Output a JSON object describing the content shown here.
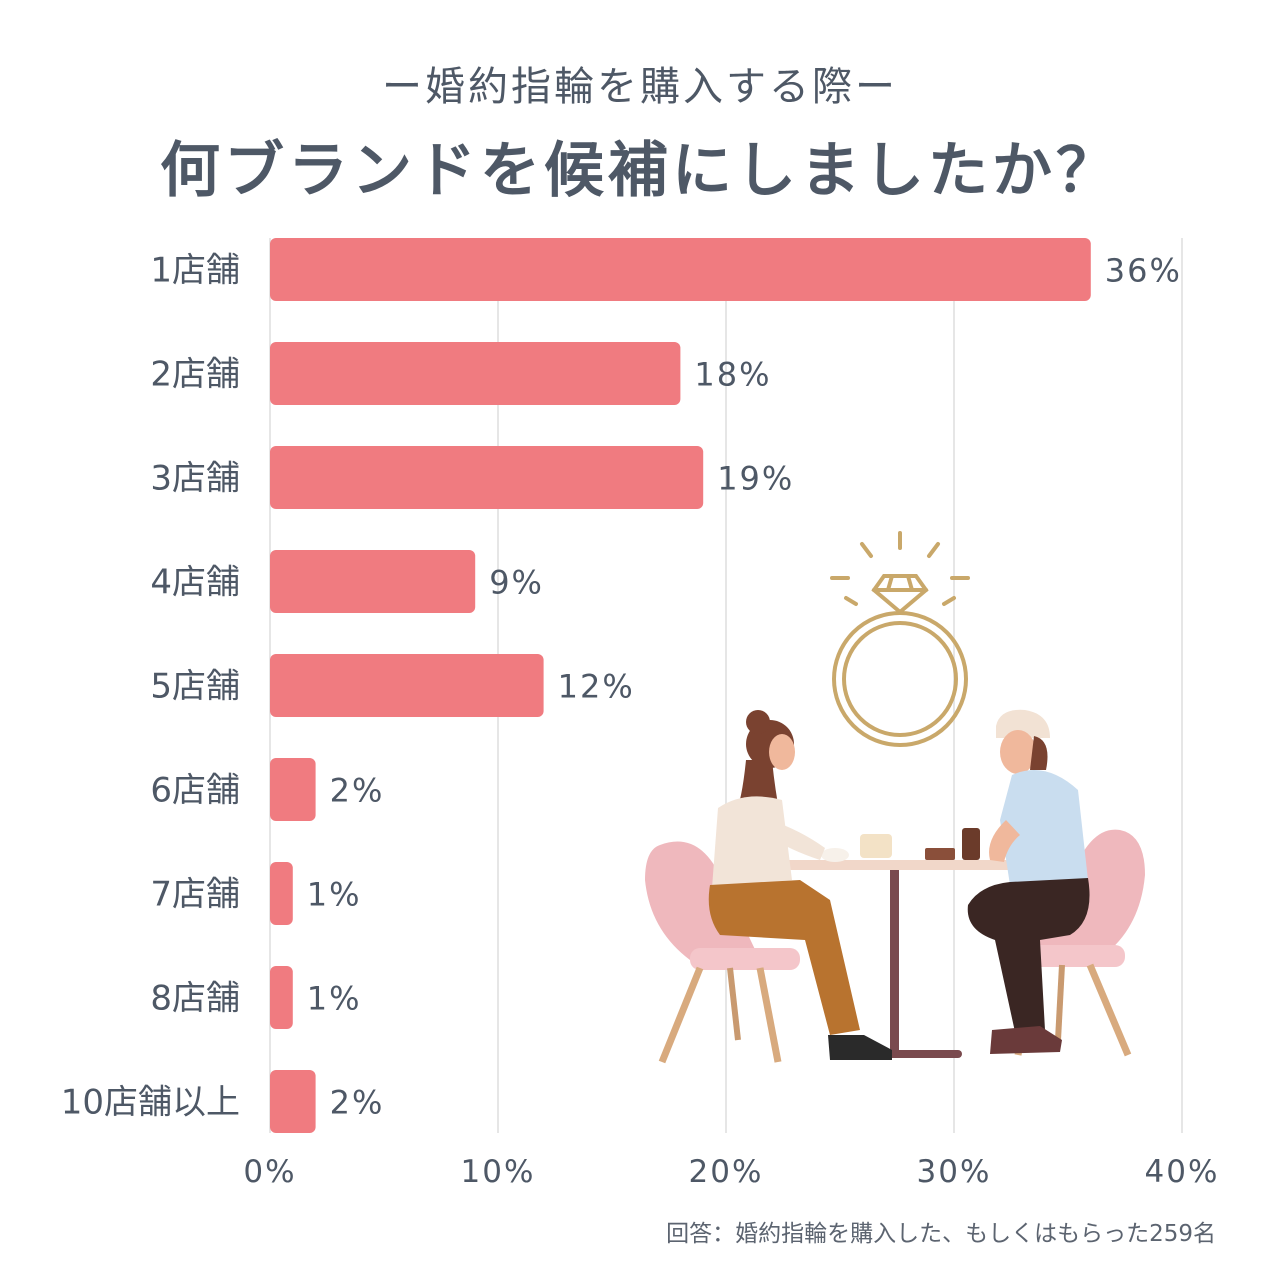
{
  "header": {
    "subtitle": "ー婚約指輪を購入する際ー",
    "title": "何ブランドを候補にしましたか？"
  },
  "footer": {
    "note": "回答：婚約指輪を購入した、もしくはもらった259名"
  },
  "colors": {
    "bar": "#f07b80",
    "text": "#4e5866",
    "grid": "#e6e6e6"
  },
  "illustration": {
    "icon": "couple-at-cafe-with-engagement-ring-icon"
  },
  "chart_data": {
    "type": "bar",
    "orientation": "horizontal",
    "categories": [
      "1店舗",
      "2店舗",
      "3店舗",
      "4店舗",
      "5店舗",
      "6店舗",
      "7店舗",
      "8店舗",
      "10店舗以上"
    ],
    "values": [
      36,
      18,
      19,
      9,
      12,
      2,
      1,
      1,
      2
    ],
    "value_labels": [
      "36%",
      "18%",
      "19%",
      "9%",
      "12%",
      "2%",
      "1%",
      "1%",
      "2%"
    ],
    "xlim": [
      0,
      40
    ],
    "xticks": [
      0,
      10,
      20,
      30,
      40
    ],
    "xtick_labels": [
      "0%",
      "10%",
      "20%",
      "30%",
      "40%"
    ],
    "grid": true
  }
}
